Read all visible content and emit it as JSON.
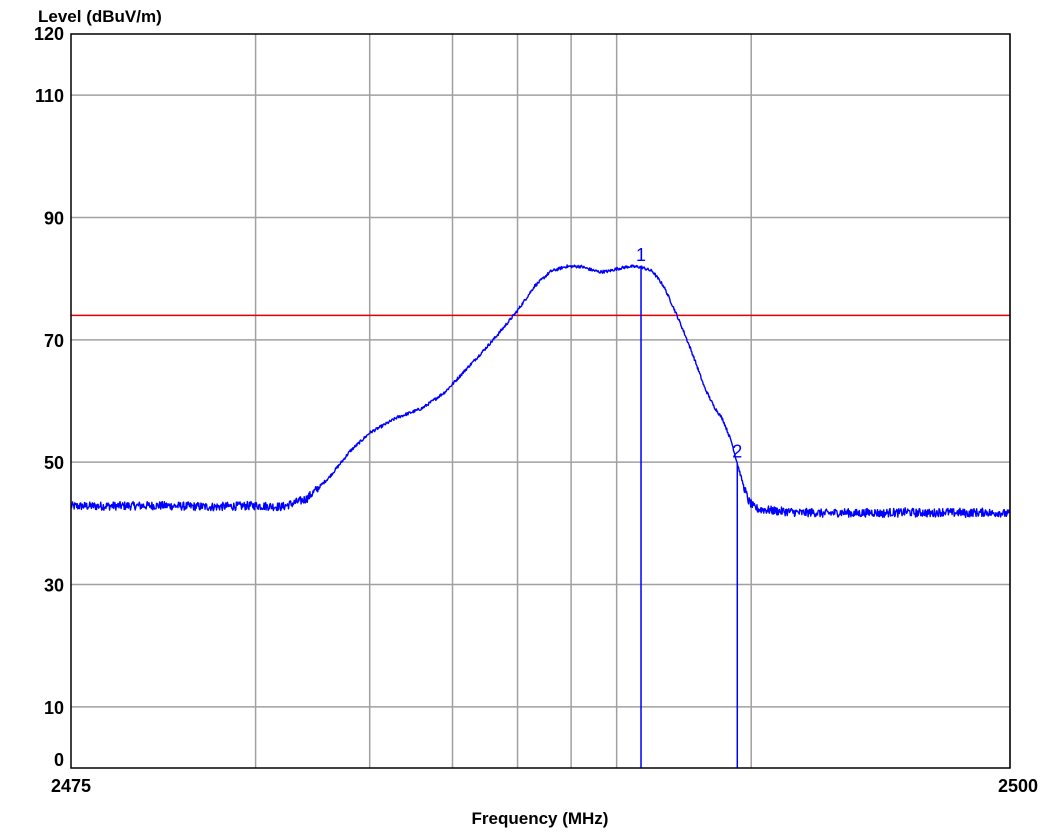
{
  "chart_data": {
    "type": "line",
    "ylabel": "Level (dBuV/m)",
    "xlabel": "Frequency (MHz)",
    "xlim": [
      2475,
      2500
    ],
    "ylim": [
      0,
      120
    ],
    "x_scale": "log",
    "y_ticks": [
      0,
      10,
      30,
      50,
      70,
      90,
      110,
      120
    ],
    "x_tick_labels": [
      "2475",
      "2500"
    ],
    "x_grid_values": [
      2476,
      2477,
      2478,
      2479,
      2480,
      2481,
      2485,
      2500
    ],
    "y_grid_values": [
      10,
      30,
      50,
      70,
      90,
      110
    ],
    "grid": true,
    "limit_line": {
      "value": 74,
      "color": "#e00000"
    },
    "markers": [
      {
        "label": "1",
        "x": 2481.6,
        "y": 81.9
      },
      {
        "label": "2",
        "x": 2484.5,
        "y": 49.8
      }
    ],
    "series": [
      {
        "color": "#0000ff",
        "points": [
          [
            2475.0,
            42.8
          ],
          [
            2475.4,
            42.9
          ],
          [
            2475.7,
            42.7
          ],
          [
            2476.0,
            42.9
          ],
          [
            2476.2,
            42.7
          ],
          [
            2476.4,
            44.0
          ],
          [
            2476.6,
            47.5
          ],
          [
            2476.8,
            51.8
          ],
          [
            2477.0,
            54.8
          ],
          [
            2477.3,
            57.3
          ],
          [
            2477.6,
            58.8
          ],
          [
            2477.9,
            61.5
          ],
          [
            2478.2,
            65.3
          ],
          [
            2478.6,
            70.0
          ],
          [
            2479.0,
            74.8
          ],
          [
            2479.3,
            78.8
          ],
          [
            2479.6,
            81.2
          ],
          [
            2479.9,
            82.0
          ],
          [
            2480.2,
            82.0
          ],
          [
            2480.4,
            81.5
          ],
          [
            2480.6,
            81.1
          ],
          [
            2480.8,
            81.2
          ],
          [
            2481.0,
            81.6
          ],
          [
            2481.3,
            82.0
          ],
          [
            2481.6,
            81.9
          ],
          [
            2481.9,
            81.2
          ],
          [
            2482.2,
            78.8
          ],
          [
            2482.5,
            75.0
          ],
          [
            2482.8,
            71.0
          ],
          [
            2483.1,
            66.8
          ],
          [
            2483.4,
            62.3
          ],
          [
            2483.7,
            59.2
          ],
          [
            2484.0,
            57.0
          ],
          [
            2484.3,
            53.3
          ],
          [
            2484.5,
            49.8
          ],
          [
            2484.7,
            46.5
          ],
          [
            2484.9,
            43.7
          ],
          [
            2485.1,
            42.6
          ],
          [
            2485.3,
            42.3
          ],
          [
            2485.6,
            42.2
          ],
          [
            2486.0,
            42.0
          ],
          [
            2486.5,
            41.9
          ],
          [
            2487.0,
            41.7
          ],
          [
            2487.5,
            41.8
          ],
          [
            2488.0,
            41.6
          ],
          [
            2488.5,
            41.7
          ],
          [
            2489.0,
            41.8
          ],
          [
            2489.5,
            41.6
          ],
          [
            2490.0,
            41.7
          ],
          [
            2490.5,
            41.8
          ],
          [
            2491.0,
            41.6
          ],
          [
            2491.5,
            41.8
          ],
          [
            2492.0,
            41.7
          ],
          [
            2492.5,
            41.9
          ],
          [
            2493.0,
            41.7
          ],
          [
            2493.5,
            41.8
          ],
          [
            2494.0,
            41.6
          ],
          [
            2494.5,
            41.8
          ],
          [
            2495.0,
            41.9
          ],
          [
            2495.5,
            41.7
          ],
          [
            2496.0,
            41.8
          ],
          [
            2496.5,
            41.6
          ],
          [
            2497.0,
            41.8
          ],
          [
            2497.5,
            41.7
          ],
          [
            2498.0,
            41.9
          ],
          [
            2498.5,
            41.6
          ],
          [
            2499.0,
            41.8
          ],
          [
            2499.5,
            41.6
          ],
          [
            2500.0,
            41.5
          ]
        ]
      }
    ]
  }
}
